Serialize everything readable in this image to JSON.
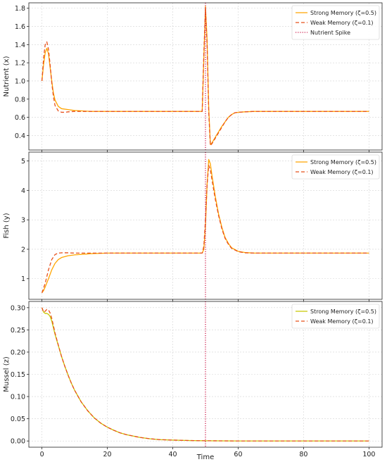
{
  "chart_data": [
    {
      "type": "line",
      "ylabel": "Nutrient (x)",
      "xlabel": "",
      "xlim": [
        -4,
        104
      ],
      "ylim": [
        0.24,
        1.86
      ],
      "xticks": [
        0,
        20,
        40,
        60,
        80,
        100
      ],
      "yticks": [
        0.4,
        0.6,
        0.8,
        1.0,
        1.2,
        1.4,
        1.6,
        1.8
      ],
      "ytick_labels": [
        "0.4",
        "0.6",
        "0.8",
        "1.0",
        "1.2",
        "1.4",
        "1.6",
        "1.8"
      ],
      "show_xtick_labels": false,
      "grid": true,
      "legend_position": "top-right",
      "series": [
        {
          "name": "Strong Memory (ζ=0.5)",
          "color": "#ffa500",
          "dash": "solid",
          "x": [
            0,
            0.5,
            1,
            1.5,
            2,
            2.5,
            3,
            3.5,
            4,
            5,
            6,
            8,
            10,
            15,
            20,
            30,
            40,
            49,
            49.5,
            50,
            50.5,
            51,
            51.5,
            52,
            53,
            54,
            55,
            56,
            57,
            58,
            59,
            60,
            62,
            65,
            70,
            80,
            90,
            100
          ],
          "y": [
            1.0,
            1.18,
            1.31,
            1.36,
            1.3,
            1.15,
            1.0,
            0.87,
            0.79,
            0.72,
            0.695,
            0.685,
            0.675,
            0.665,
            0.665,
            0.665,
            0.665,
            0.665,
            1.25,
            1.82,
            1.45,
            0.7,
            0.3,
            0.32,
            0.38,
            0.44,
            0.5,
            0.55,
            0.6,
            0.63,
            0.65,
            0.655,
            0.66,
            0.665,
            0.665,
            0.665,
            0.665,
            0.665
          ]
        },
        {
          "name": "Weak Memory (ζ=0.1)",
          "color": "#e8501b",
          "dash": "dashed",
          "x": [
            0,
            0.5,
            1,
            1.5,
            2,
            2.5,
            3,
            3.5,
            4,
            5,
            6,
            7,
            8,
            10,
            15,
            20,
            30,
            40,
            49,
            49.5,
            50,
            50.5,
            51,
            51.5,
            52,
            53,
            54,
            55,
            56,
            57,
            58,
            59,
            60,
            62,
            65,
            70,
            80,
            90,
            100
          ],
          "y": [
            1.0,
            1.25,
            1.4,
            1.43,
            1.35,
            1.18,
            0.98,
            0.83,
            0.73,
            0.67,
            0.655,
            0.655,
            0.66,
            0.665,
            0.665,
            0.665,
            0.665,
            0.665,
            0.665,
            1.3,
            1.8,
            1.4,
            0.65,
            0.29,
            0.31,
            0.37,
            0.43,
            0.49,
            0.55,
            0.6,
            0.63,
            0.65,
            0.655,
            0.66,
            0.665,
            0.665,
            0.665,
            0.665,
            0.665
          ]
        },
        {
          "name": "Nutrient Spike",
          "color": "#cc1a4a",
          "dash": "dotted",
          "kind": "vline",
          "x": [
            50
          ]
        }
      ]
    },
    {
      "type": "line",
      "ylabel": "Fish (y)",
      "xlabel": "",
      "xlim": [
        -4,
        104
      ],
      "ylim": [
        0.3,
        5.3
      ],
      "xticks": [
        0,
        20,
        40,
        60,
        80,
        100
      ],
      "yticks": [
        1,
        2,
        3,
        4,
        5
      ],
      "ytick_labels": [
        "1",
        "2",
        "3",
        "4",
        "5"
      ],
      "show_xtick_labels": false,
      "grid": true,
      "legend_position": "top-right",
      "series": [
        {
          "name": "Strong Memory (ζ=0.5)",
          "color": "#ffa500",
          "dash": "solid",
          "x": [
            0,
            0.5,
            1,
            2,
            3,
            4,
            5,
            6,
            8,
            10,
            15,
            20,
            30,
            40,
            49,
            49.5,
            50,
            50.5,
            51,
            51.5,
            52,
            53,
            54,
            55,
            56,
            57,
            58,
            60,
            62,
            65,
            70,
            80,
            90,
            100
          ],
          "y": [
            0.52,
            0.6,
            0.72,
            1.0,
            1.3,
            1.52,
            1.65,
            1.72,
            1.78,
            1.81,
            1.85,
            1.87,
            1.87,
            1.87,
            1.87,
            2.0,
            2.8,
            4.2,
            5.05,
            4.9,
            4.5,
            3.8,
            3.2,
            2.75,
            2.4,
            2.2,
            2.05,
            1.93,
            1.89,
            1.87,
            1.87,
            1.87,
            1.87,
            1.87
          ]
        },
        {
          "name": "Weak Memory (ζ=0.1)",
          "color": "#e8501b",
          "dash": "dashed",
          "x": [
            0,
            0.5,
            1,
            2,
            3,
            4,
            5,
            6,
            8,
            10,
            15,
            20,
            30,
            40,
            49,
            49.5,
            50,
            50.5,
            51,
            51.5,
            52,
            53,
            54,
            55,
            56,
            57,
            58,
            60,
            62,
            65,
            70,
            80,
            90,
            100
          ],
          "y": [
            0.52,
            0.68,
            0.85,
            1.3,
            1.65,
            1.82,
            1.87,
            1.88,
            1.88,
            1.87,
            1.87,
            1.87,
            1.87,
            1.87,
            1.87,
            2.1,
            3.0,
            4.2,
            4.85,
            4.7,
            4.35,
            3.7,
            3.15,
            2.7,
            2.37,
            2.17,
            2.03,
            1.92,
            1.88,
            1.87,
            1.87,
            1.87,
            1.87,
            1.87
          ]
        },
        {
          "name": "",
          "color": "#cc1a4a",
          "dash": "dotted",
          "kind": "vline",
          "x": [
            50
          ]
        }
      ]
    },
    {
      "type": "line",
      "ylabel": "Mussel (z)",
      "xlabel": "Time",
      "xlim": [
        -4,
        104
      ],
      "ylim": [
        -0.014,
        0.314
      ],
      "xticks": [
        0,
        20,
        40,
        60,
        80,
        100
      ],
      "yticks": [
        0.0,
        0.05,
        0.1,
        0.15,
        0.2,
        0.25,
        0.3
      ],
      "ytick_labels": [
        "0.00",
        "0.05",
        "0.10",
        "0.15",
        "0.20",
        "0.25",
        "0.30"
      ],
      "xtick_labels": [
        "0",
        "20",
        "40",
        "60",
        "80",
        "100"
      ],
      "show_xtick_labels": true,
      "grid": true,
      "legend_position": "top-right",
      "series": [
        {
          "name": "Strong Memory (ζ=0.5)",
          "color": "#c8c800",
          "dash": "solid",
          "x": [
            0,
            0.5,
            1,
            1.5,
            2,
            2.5,
            3,
            3.5,
            4,
            5,
            6,
            7,
            8,
            9,
            10,
            12,
            14,
            16,
            18,
            20,
            22,
            24,
            26,
            28,
            30,
            33,
            36,
            40,
            45,
            50,
            60,
            70,
            80,
            90,
            100
          ],
          "y": [
            0.3,
            0.29,
            0.287,
            0.287,
            0.285,
            0.28,
            0.27,
            0.255,
            0.24,
            0.215,
            0.19,
            0.168,
            0.148,
            0.13,
            0.114,
            0.088,
            0.068,
            0.052,
            0.04,
            0.031,
            0.024,
            0.018,
            0.014,
            0.011,
            0.008,
            0.005,
            0.003,
            0.002,
            0.001,
            0.0005,
            0.0,
            0.0,
            0.0,
            0.0,
            0.0
          ]
        },
        {
          "name": "Weak Memory (ζ=0.1)",
          "color": "#e8501b",
          "dash": "dashed",
          "x": [
            0,
            0.5,
            1,
            1.5,
            2,
            2.5,
            3,
            3.5,
            4,
            5,
            6,
            7,
            8,
            9,
            10,
            12,
            14,
            16,
            18,
            20,
            22,
            24,
            26,
            28,
            30,
            33,
            36,
            40,
            45,
            50,
            60,
            70,
            80,
            90,
            100
          ],
          "y": [
            0.3,
            0.29,
            0.292,
            0.296,
            0.295,
            0.288,
            0.276,
            0.26,
            0.243,
            0.216,
            0.19,
            0.168,
            0.148,
            0.13,
            0.114,
            0.088,
            0.068,
            0.052,
            0.04,
            0.031,
            0.024,
            0.018,
            0.014,
            0.011,
            0.008,
            0.005,
            0.003,
            0.002,
            0.001,
            0.0005,
            0.0,
            0.0,
            0.0,
            0.0,
            0.0
          ]
        },
        {
          "name": "",
          "color": "#cc1a4a",
          "dash": "dotted",
          "kind": "vline",
          "x": [
            50
          ]
        }
      ]
    }
  ]
}
